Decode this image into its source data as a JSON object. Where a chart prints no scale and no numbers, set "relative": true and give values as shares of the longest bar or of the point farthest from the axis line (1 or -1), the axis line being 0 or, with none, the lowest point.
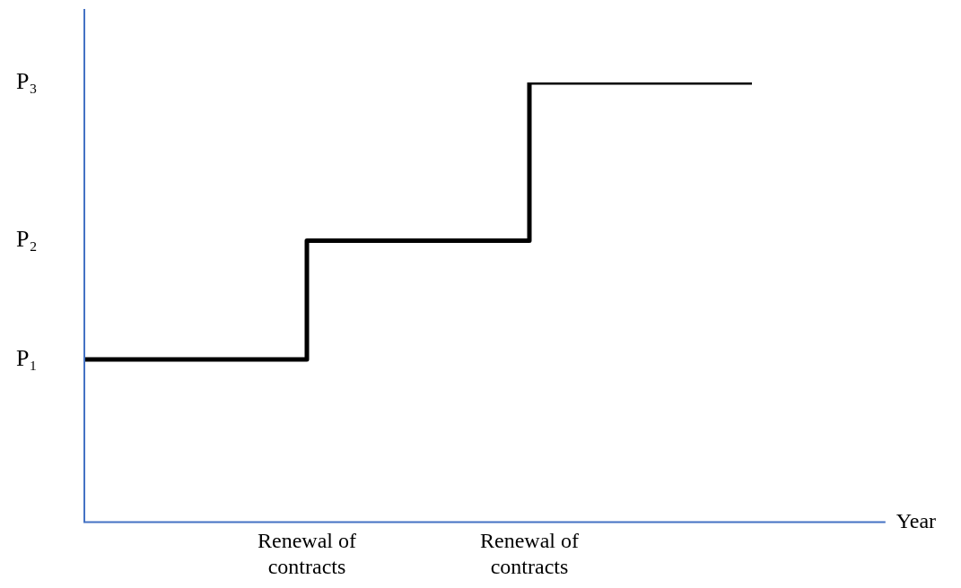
{
  "chart_data": {
    "type": "step",
    "relative": true,
    "xlabel": "Year",
    "categories": [
      null,
      "Renewal of contracts",
      "Renewal of contracts",
      null
    ],
    "series": [
      {
        "color": "#000000",
        "values": [
          0.37,
          0.64,
          1,
          1
        ]
      }
    ],
    "annotations": [
      "P₁",
      "P₂",
      "P₃"
    ],
    "grid": false,
    "legend": false,
    "marker": "none"
  }
}
